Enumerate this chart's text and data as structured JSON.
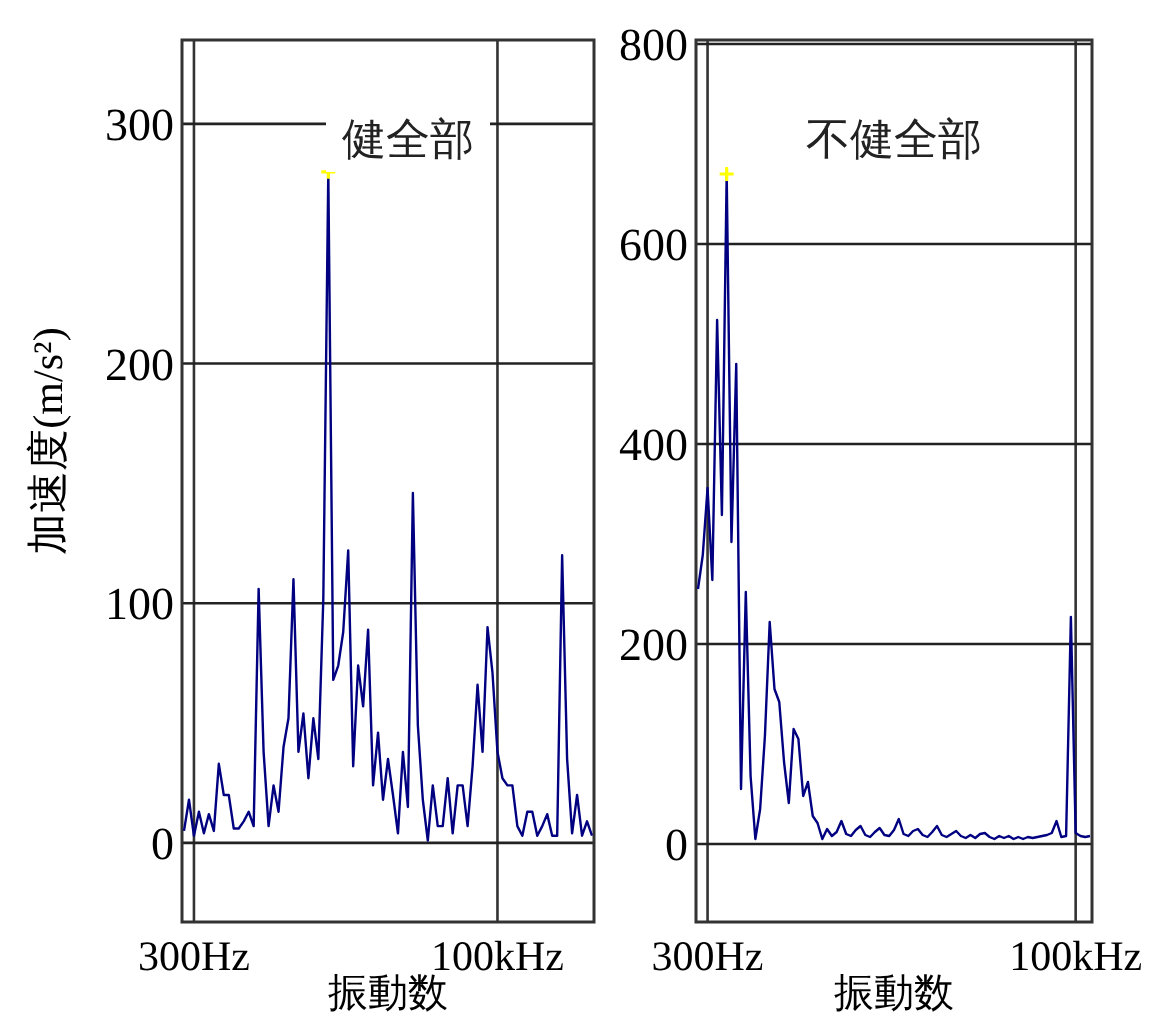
{
  "chart_data": [
    {
      "type": "line",
      "title": "健全部",
      "xlabel": "振動数",
      "ylabel": "加速度(m/s²)",
      "grid": true,
      "categories": [
        null,
        null,
        "300Hz",
        null,
        null,
        null,
        null,
        null,
        null,
        null,
        null,
        null,
        null,
        null,
        null,
        null,
        null,
        null,
        null,
        null,
        null,
        null,
        null,
        null,
        null,
        null,
        null,
        null,
        null,
        null,
        null,
        null,
        null,
        null,
        null,
        null,
        null,
        null,
        null,
        null,
        null,
        null,
        null,
        null,
        null,
        null,
        null,
        null,
        null,
        null,
        null,
        null,
        null,
        null,
        null,
        null,
        null,
        null,
        null,
        null,
        null,
        null,
        null,
        "100kHz",
        null,
        null,
        null,
        null,
        null,
        null,
        null,
        null,
        null,
        null,
        null,
        null,
        null,
        null,
        null,
        null,
        null,
        null,
        null
      ],
      "ylim": [
        -33,
        335
      ],
      "yticks": [
        0,
        100,
        200,
        300
      ],
      "series": [
        {
          "color": "#000080",
          "values": [
            5,
            18,
            3,
            13,
            4,
            12,
            5,
            33,
            20,
            20,
            6,
            6,
            9,
            13,
            7,
            106,
            38,
            7,
            24,
            13,
            40,
            52,
            110,
            38,
            54,
            27,
            52,
            35,
            102,
            280,
            68,
            74,
            88,
            122,
            32,
            74,
            57,
            89,
            24,
            46,
            18,
            35,
            20,
            4,
            38,
            15,
            146,
            49,
            18,
            1,
            24,
            7,
            7,
            27,
            4,
            24,
            24,
            7,
            32,
            66,
            38,
            90,
            71,
            38,
            27,
            24,
            24,
            7,
            3,
            13,
            13,
            3,
            7,
            12,
            3,
            3,
            120,
            35,
            4,
            20,
            3,
            9,
            3
          ]
        },
        {
          "type": "scatter",
          "color": "#ffff00",
          "marker": "cross",
          "values": [
            null,
            null,
            null,
            null,
            null,
            null,
            null,
            null,
            null,
            null,
            null,
            null,
            null,
            null,
            null,
            null,
            null,
            null,
            null,
            null,
            null,
            null,
            null,
            null,
            null,
            null,
            null,
            null,
            null,
            280,
            null,
            null,
            null,
            null,
            null,
            null,
            null,
            null,
            null,
            null,
            null,
            null,
            null,
            null,
            null,
            null,
            null,
            null,
            null,
            null,
            null,
            null,
            null,
            null,
            null,
            null,
            null,
            null,
            null,
            null,
            null,
            null,
            null,
            null,
            null,
            null,
            null,
            null,
            null,
            null,
            null,
            null,
            null,
            null,
            null,
            null,
            null,
            null,
            null,
            null,
            null,
            null,
            null
          ]
        }
      ]
    },
    {
      "type": "line",
      "title": "不健全部",
      "xlabel": "振動数",
      "grid": true,
      "categories": [
        null,
        null,
        "300Hz",
        null,
        null,
        null,
        null,
        null,
        null,
        null,
        null,
        null,
        null,
        null,
        null,
        null,
        null,
        null,
        null,
        null,
        null,
        null,
        null,
        null,
        null,
        null,
        null,
        null,
        null,
        null,
        null,
        null,
        null,
        null,
        null,
        null,
        null,
        null,
        null,
        null,
        null,
        null,
        null,
        null,
        null,
        null,
        null,
        null,
        null,
        null,
        null,
        null,
        null,
        null,
        null,
        null,
        null,
        null,
        null,
        null,
        null,
        null,
        null,
        null,
        null,
        null,
        null,
        null,
        null,
        null,
        null,
        null,
        null,
        null,
        null,
        null,
        null,
        null,
        null,
        "100kHz",
        null,
        null,
        null
      ],
      "ylim": [
        -78,
        804
      ],
      "yticks": [
        0,
        200,
        400,
        600,
        800
      ],
      "series": [
        {
          "color": "#000080",
          "values": [
            255,
            289,
            356,
            264,
            524,
            329,
            670,
            302,
            480,
            55,
            252,
            68,
            5,
            35,
            108,
            222,
            155,
            142,
            82,
            41,
            115,
            105,
            48,
            62,
            28,
            21,
            5,
            15,
            8,
            12,
            23,
            10,
            8,
            14,
            18,
            9,
            7,
            12,
            16,
            9,
            8,
            14,
            25,
            10,
            8,
            13,
            15,
            9,
            7,
            12,
            18,
            9,
            7,
            10,
            13,
            8,
            6,
            9,
            6,
            10,
            11,
            7,
            5,
            8,
            6,
            8,
            5,
            7,
            5,
            7,
            6,
            7,
            8,
            9,
            11,
            23,
            7,
            8,
            227,
            11,
            8,
            7,
            8
          ]
        },
        {
          "type": "scatter",
          "color": "#ffff00",
          "marker": "cross",
          "values": [
            null,
            null,
            null,
            null,
            null,
            null,
            670,
            null,
            null,
            null,
            null,
            null,
            null,
            null,
            null,
            null,
            null,
            null,
            null,
            null,
            null,
            null,
            null,
            null,
            null,
            null,
            null,
            null,
            null,
            null,
            null,
            null,
            null,
            null,
            null,
            null,
            null,
            null,
            null,
            null,
            null,
            null,
            null,
            null,
            null,
            null,
            null,
            null,
            null,
            null,
            null,
            null,
            null,
            null,
            null,
            null,
            null,
            null,
            null,
            null,
            null,
            null,
            null,
            null,
            null,
            null,
            null,
            null,
            null,
            null,
            null,
            null,
            null,
            null,
            null,
            null,
            null,
            null,
            null,
            null,
            null,
            null,
            null
          ]
        }
      ]
    }
  ]
}
